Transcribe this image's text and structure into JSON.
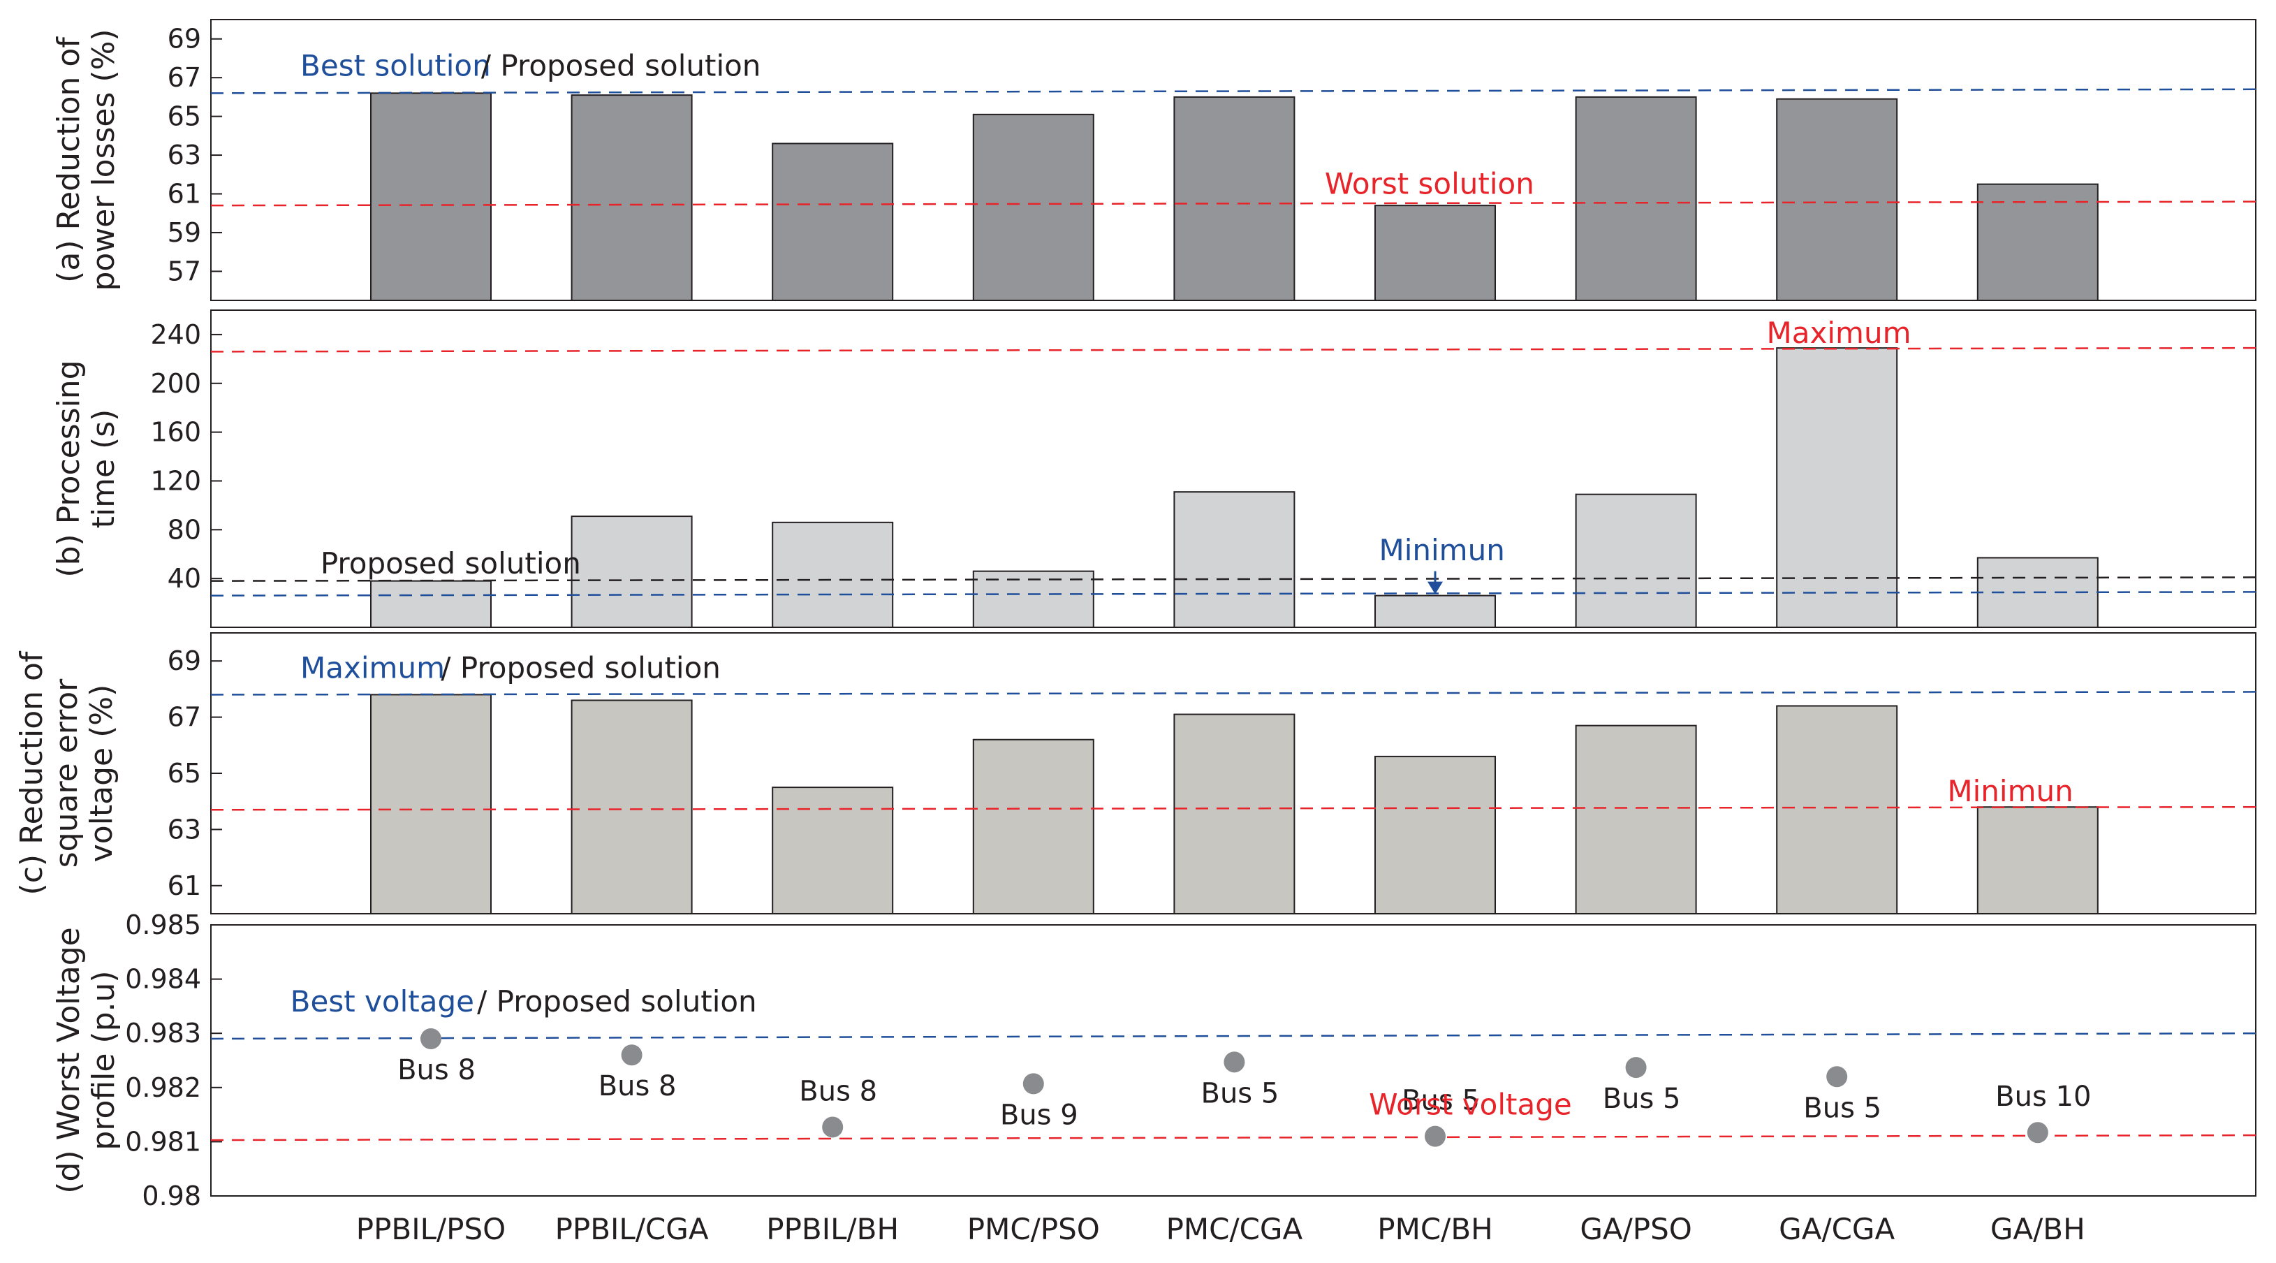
{
  "colors": {
    "blue": "#1f4e9a",
    "red": "#e8242b",
    "black": "#231f20",
    "bar_a": "#939598",
    "bar_b": "#d1d3d4",
    "bar_c": "#c8c6c0",
    "dot": "#8a8b8e"
  },
  "chart_data": [
    {
      "type": "bar",
      "panel": "a",
      "ylabel": [
        "(a) Reduction of",
        "power losses (%)"
      ],
      "categories": [
        "PPBIL/PSO",
        "PPBIL/CGA",
        "PPBIL/BH",
        "PMC/PSO",
        "PMC/CGA",
        "PMC/BH",
        "GA/PSO",
        "GA/CGA",
        "GA/BH"
      ],
      "values": [
        66.2,
        66.1,
        63.6,
        65.1,
        66.0,
        60.4,
        66.0,
        65.9,
        61.5
      ],
      "ylim": [
        55.5,
        70
      ],
      "yticks": [
        57,
        59,
        61,
        63,
        65,
        67,
        69
      ],
      "reference_lines": [
        {
          "color": "blue",
          "y_start": 66.2,
          "y_end": 66.4
        },
        {
          "color": "red",
          "y_start": 60.4,
          "y_end": 60.6
        }
      ],
      "annotations": [
        {
          "text": "Best solution",
          "color": "blue",
          "anchor": "PPBIL/PSO",
          "dx": -0.65,
          "y": 67.1
        },
        {
          "text": "/ Proposed solution",
          "color": "black",
          "anchor": "PPBIL/PSO",
          "dx": 0.25,
          "y": 67.1
        },
        {
          "text": "Worst solution",
          "color": "red",
          "anchor": "PMC/BH",
          "dx": -0.55,
          "y": 61.0
        }
      ]
    },
    {
      "type": "bar",
      "panel": "b",
      "ylabel": [
        "(b) Processing",
        "time (s)"
      ],
      "categories": [
        "PPBIL/PSO",
        "PPBIL/CGA",
        "PPBIL/BH",
        "PMC/PSO",
        "PMC/CGA",
        "PMC/BH",
        "GA/PSO",
        "GA/CGA",
        "GA/BH"
      ],
      "values": [
        38,
        91,
        86,
        46,
        111,
        26,
        109,
        229,
        57
      ],
      "ylim": [
        0,
        260
      ],
      "yticks": [
        40,
        80,
        120,
        160,
        200,
        240
      ],
      "reference_lines": [
        {
          "color": "red",
          "y_start": 226,
          "y_end": 229
        },
        {
          "color": "black",
          "y_start": 38,
          "y_end": 41
        },
        {
          "color": "blue",
          "y_start": 26,
          "y_end": 29
        }
      ],
      "annotations": [
        {
          "text": "Maximum",
          "color": "red",
          "anchor": "GA/CGA",
          "dx": -0.35,
          "y": 233
        },
        {
          "text": "Proposed solution",
          "color": "black",
          "anchor": "PPBIL/PSO",
          "dx": -0.55,
          "y": 44
        },
        {
          "text": "Minimun",
          "color": "blue",
          "anchor": "PMC/BH",
          "dx": -0.28,
          "y": 55
        },
        {
          "text": "arrow",
          "color": "blue",
          "anchor": "PMC/BH",
          "y_from": 46,
          "y_to": 26
        }
      ]
    },
    {
      "type": "bar",
      "panel": "c",
      "ylabel": [
        "(c) Reduction of",
        "square error",
        "voltage (%)"
      ],
      "categories": [
        "PPBIL/PSO",
        "PPBIL/CGA",
        "PPBIL/BH",
        "PMC/PSO",
        "PMC/CGA",
        "PMC/BH",
        "GA/PSO",
        "GA/CGA",
        "GA/BH"
      ],
      "values": [
        67.8,
        67.6,
        64.5,
        66.2,
        67.1,
        65.6,
        66.7,
        67.4,
        63.8
      ],
      "ylim": [
        60,
        70
      ],
      "yticks": [
        61,
        63,
        65,
        67,
        69
      ],
      "reference_lines": [
        {
          "color": "blue",
          "y_start": 67.8,
          "y_end": 67.9
        },
        {
          "color": "red",
          "y_start": 63.7,
          "y_end": 63.8
        }
      ],
      "annotations": [
        {
          "text": "Maximum",
          "color": "blue",
          "anchor": "PPBIL/PSO",
          "dx": -0.65,
          "y": 68.4
        },
        {
          "text": "/ Proposed solution",
          "color": "black",
          "anchor": "PPBIL/PSO",
          "dx": 0.05,
          "y": 68.4
        },
        {
          "text": "Minimun",
          "color": "red",
          "anchor": "GA/BH",
          "dx": -0.45,
          "y": 64.0
        }
      ]
    },
    {
      "type": "scatter",
      "panel": "d",
      "ylabel": [
        "(d) Worst Voltage",
        "profile (p.u)"
      ],
      "categories": [
        "PPBIL/PSO",
        "PPBIL/CGA",
        "PPBIL/BH",
        "PMC/PSO",
        "PMC/CGA",
        "PMC/BH",
        "GA/PSO",
        "GA/CGA",
        "GA/BH"
      ],
      "values": [
        0.9829,
        0.9826,
        0.98127,
        0.98207,
        0.98247,
        0.9811,
        0.98237,
        0.9822,
        0.98117
      ],
      "point_labels": [
        "Bus 8",
        "Bus 8",
        "Bus 8",
        "Bus 9",
        "Bus 5",
        "Bus 5",
        "Bus 5",
        "Bus 5",
        "Bus 10"
      ],
      "label_pos": [
        "below",
        "below",
        "above",
        "below",
        "below",
        "above",
        "below",
        "below",
        "above"
      ],
      "ylim": [
        0.98,
        0.985
      ],
      "yticks": [
        0.98,
        0.981,
        0.982,
        0.983,
        0.984,
        0.985
      ],
      "ytick_labels": [
        "0.98",
        "0.981",
        "0.982",
        "0.983",
        "0.984",
        "0.985"
      ],
      "reference_lines": [
        {
          "color": "blue",
          "y_start": 0.9829,
          "y_end": 0.983
        },
        {
          "color": "red",
          "y_start": 0.98103,
          "y_end": 0.98112
        }
      ],
      "annotations": [
        {
          "text": "Best voltage",
          "color": "blue",
          "anchor": "PPBIL/PSO",
          "dx": -0.7,
          "y": 0.9834
        },
        {
          "text": "/ Proposed solution",
          "color": "black",
          "anchor": "PPBIL/PSO",
          "dx": 0.23,
          "y": 0.9834
        },
        {
          "text": "Worst voltage",
          "color": "red",
          "anchor": "PMC/BH",
          "dx": -0.33,
          "y": 0.9815
        }
      ]
    }
  ]
}
